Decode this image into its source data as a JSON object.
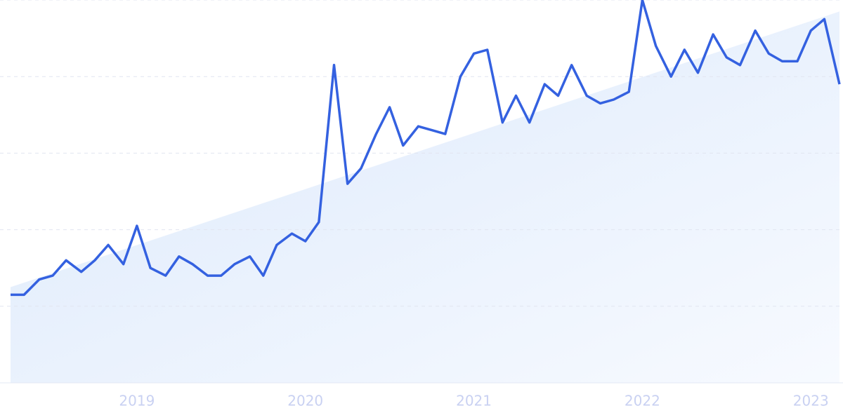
{
  "chart_data": {
    "type": "line",
    "x": [
      2018.25,
      2018.33,
      2018.42,
      2018.5,
      2018.58,
      2018.67,
      2018.75,
      2018.83,
      2018.92,
      2019,
      2019.08,
      2019.17,
      2019.25,
      2019.33,
      2019.42,
      2019.5,
      2019.58,
      2019.67,
      2019.75,
      2019.83,
      2019.92,
      2020,
      2020.08,
      2020.17,
      2020.25,
      2020.33,
      2020.42,
      2020.5,
      2020.58,
      2020.67,
      2020.75,
      2020.83,
      2020.92,
      2021,
      2021.08,
      2021.17,
      2021.25,
      2021.33,
      2021.42,
      2021.5,
      2021.58,
      2021.67,
      2021.75,
      2021.83,
      2021.92,
      2022,
      2022.08,
      2022.17,
      2022.25,
      2022.33,
      2022.42,
      2022.5,
      2022.58,
      2022.67,
      2022.75,
      2022.83,
      2022.92,
      2023,
      2023.08,
      2023.17
    ],
    "values": [
      23,
      23,
      27,
      28,
      32,
      29,
      32,
      36,
      31,
      41,
      30,
      28,
      33,
      31,
      28,
      28,
      31,
      33,
      28,
      36,
      39,
      37,
      42,
      83,
      52,
      56,
      65,
      72,
      62,
      67,
      66,
      65,
      80,
      86,
      87,
      68,
      75,
      68,
      78,
      75,
      83,
      75,
      73,
      74,
      76,
      100,
      88,
      80,
      87,
      81,
      91,
      85,
      83,
      92,
      86,
      84,
      84,
      92,
      95,
      78
    ],
    "color": "#3461e0",
    "trend": {
      "x": [
        2018.25,
        2023.17
      ],
      "values": [
        25,
        97
      ]
    },
    "xlim": [
      2018.25,
      2023.17
    ],
    "xticks": [
      2019,
      2020,
      2021,
      2022,
      2023
    ],
    "ylim": [
      0,
      100
    ],
    "yticks": [
      0,
      20,
      40,
      60,
      80,
      100
    ],
    "grid": true
  }
}
